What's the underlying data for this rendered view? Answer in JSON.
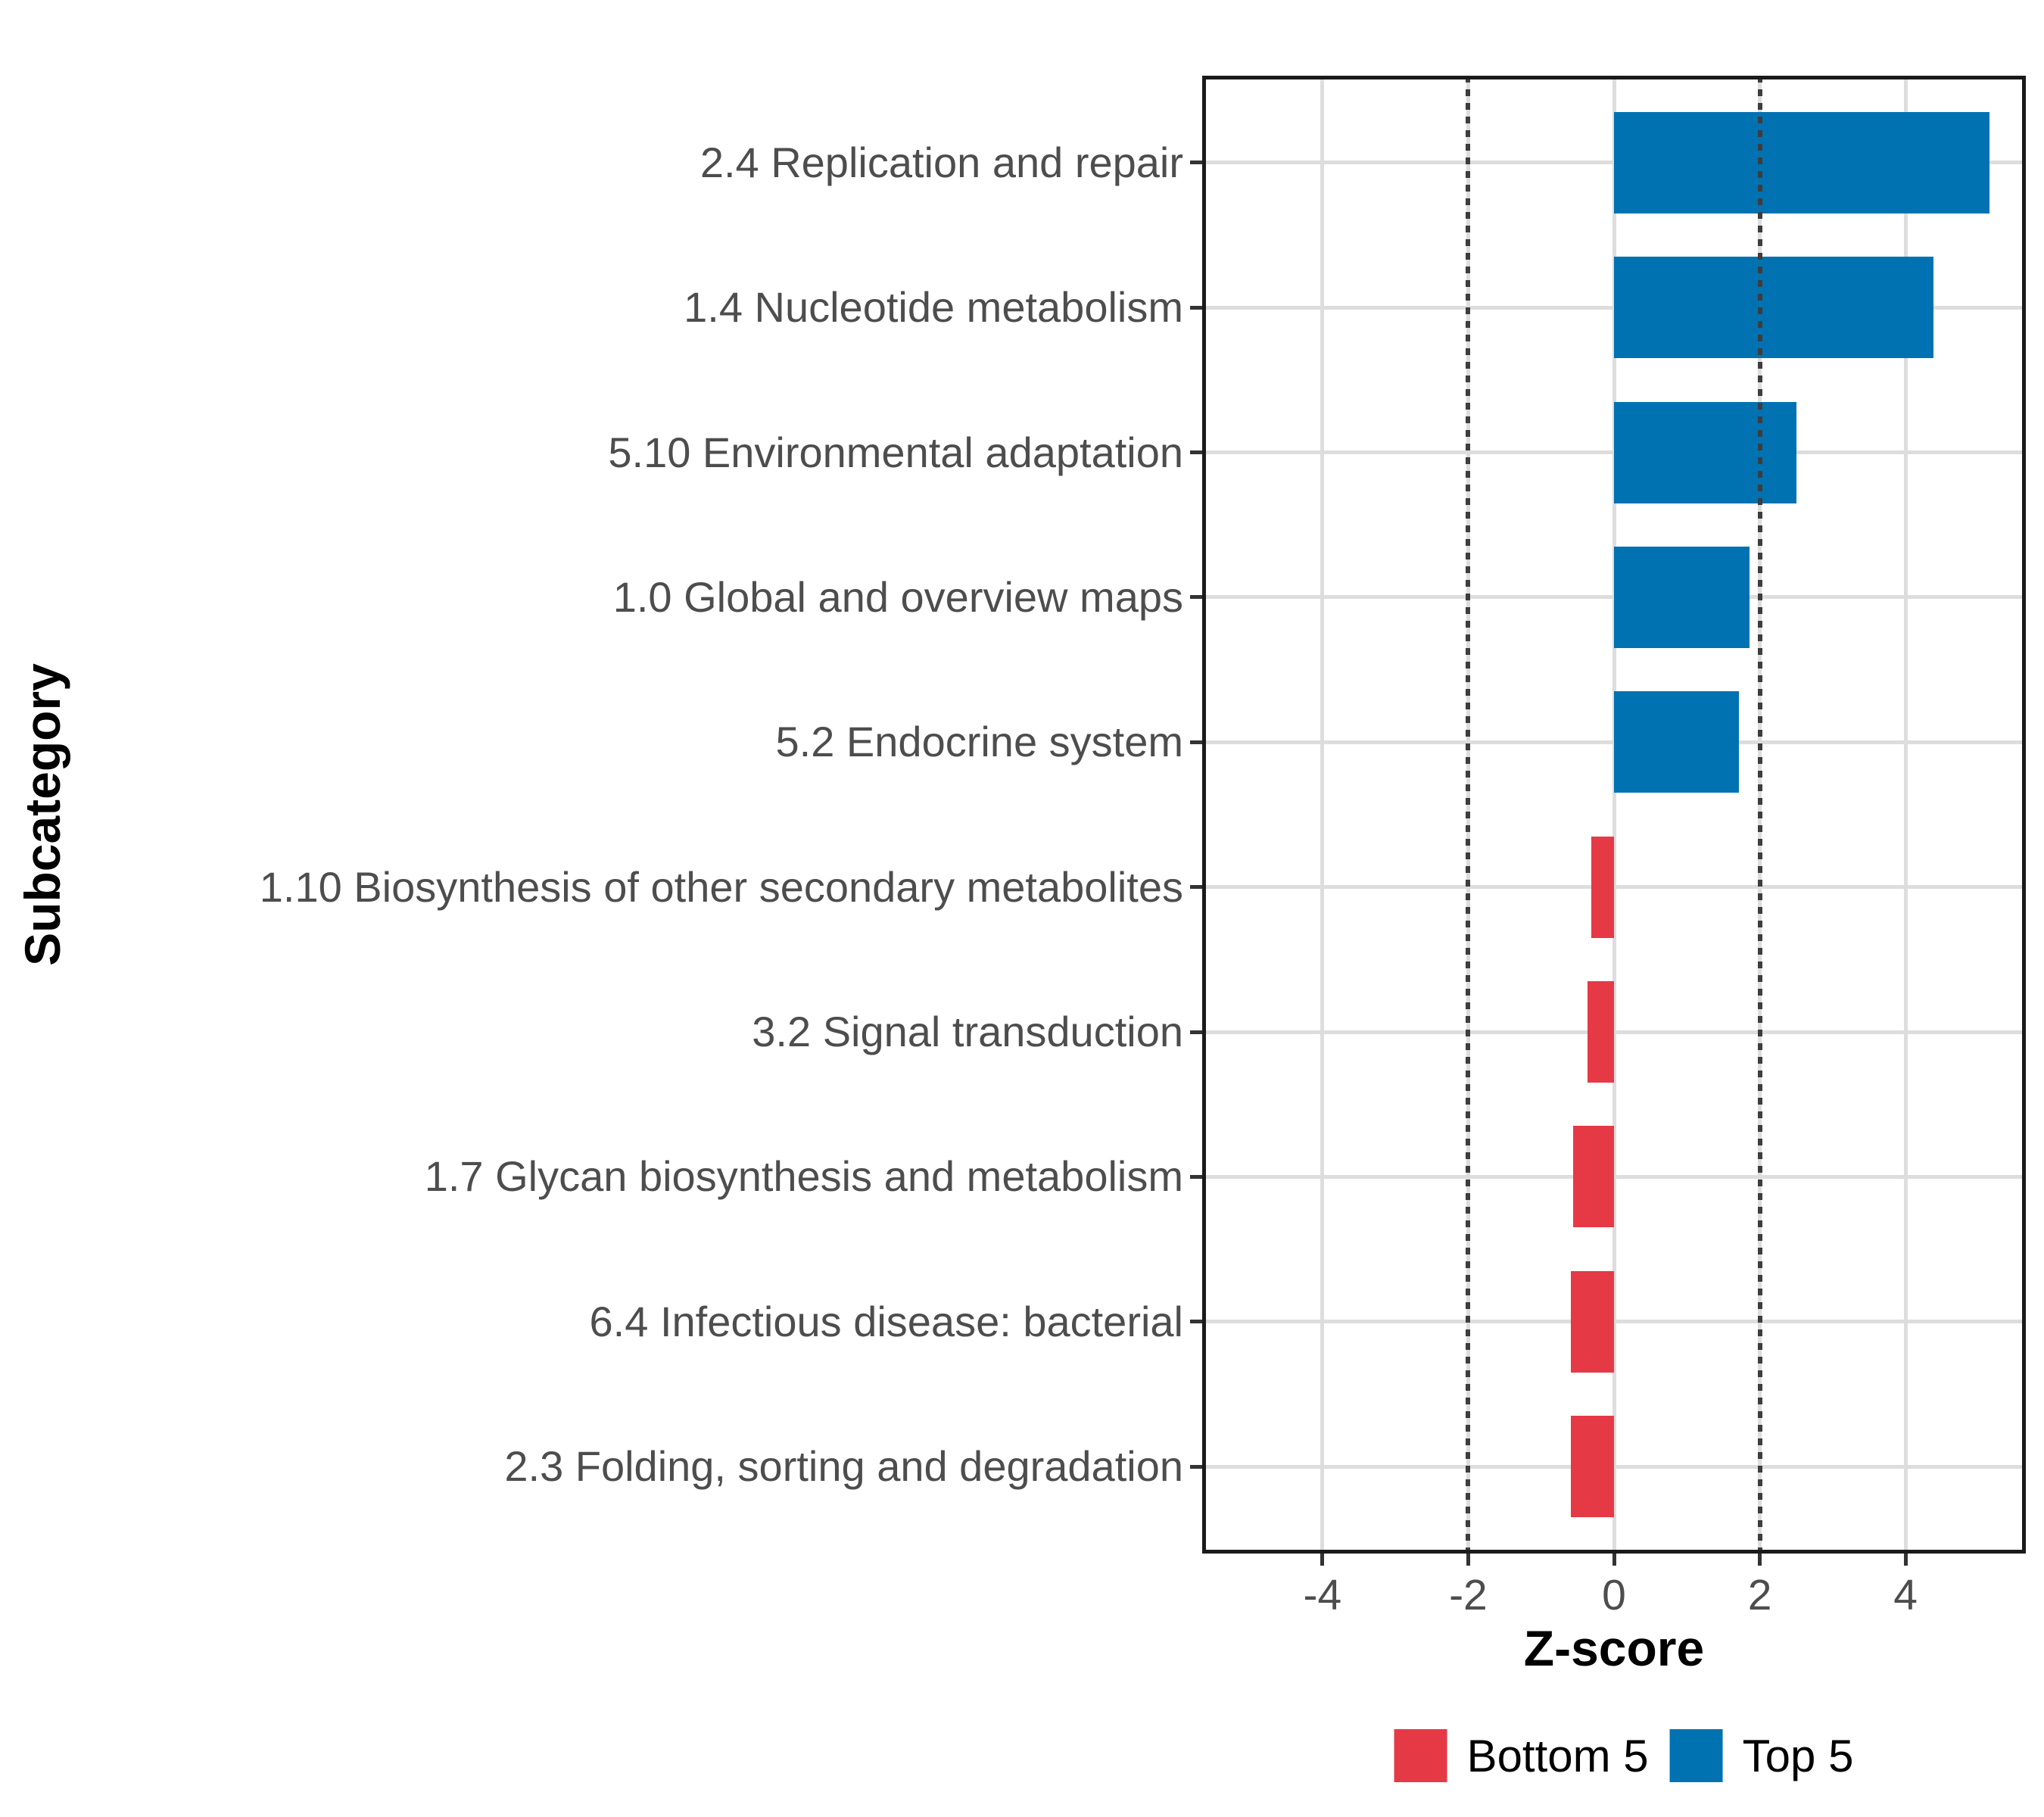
{
  "chart_data": {
    "type": "bar",
    "orientation": "horizontal",
    "title": "",
    "xlabel": "Z-score",
    "ylabel": "Subcategory",
    "xlim": [
      -5.65,
      5.65
    ],
    "x_ticks": [
      -4,
      -2,
      0,
      2,
      4
    ],
    "reference_lines": [
      -2,
      2
    ],
    "grid": true,
    "legend_position": "bottom",
    "categories": [
      "2.4 Replication and repair",
      "1.4 Nucleotide metabolism",
      "5.10 Environmental adaptation",
      "1.0 Global and overview maps",
      "5.2 Endocrine system",
      "1.10 Biosynthesis of other secondary metabolites",
      "3.2 Signal transduction",
      "1.7 Glycan biosynthesis and metabolism",
      "6.4 Infectious disease: bacterial",
      "2.3 Folding, sorting and degradation"
    ],
    "values": [
      5.15,
      4.38,
      2.5,
      1.86,
      1.71,
      -0.31,
      -0.36,
      -0.56,
      -0.59,
      -0.59
    ],
    "groups": [
      "Top 5",
      "Top 5",
      "Top 5",
      "Top 5",
      "Top 5",
      "Bottom 5",
      "Bottom 5",
      "Bottom 5",
      "Bottom 5",
      "Bottom 5"
    ],
    "legend": [
      {
        "label": "Bottom 5",
        "color": "#E63946"
      },
      {
        "label": "Top 5",
        "color": "#0072B2"
      }
    ],
    "colors": {
      "Top 5": "#0072B2",
      "Bottom 5": "#E63946"
    },
    "gridline_color": "#dddddd",
    "reference_line_color": "#3d3d3d",
    "bar_color_blue": "#0072B2",
    "bar_color_red": "#E63946"
  }
}
